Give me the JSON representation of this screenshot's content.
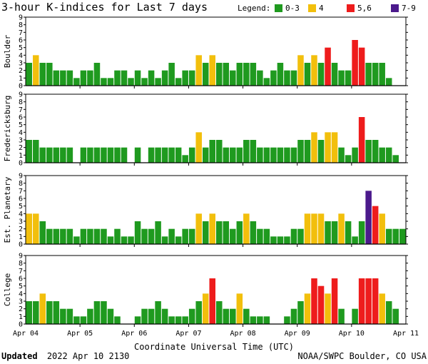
{
  "title": "3-hour K-indices for Last 7 days",
  "legend": {
    "label": "Legend:",
    "items": [
      {
        "label": "0-3",
        "color": "#1f9a1f"
      },
      {
        "label": "4",
        "color": "#f2bf0c"
      },
      {
        "label": "5,6",
        "color": "#ee1c1c"
      },
      {
        "label": "7-9",
        "color": "#4b1a8c"
      }
    ]
  },
  "chart_data": {
    "type": "bar",
    "x_ticks": [
      "Apr 04",
      "Apr 05",
      "Apr 06",
      "Apr 07",
      "Apr 08",
      "Apr 09",
      "Apr 10",
      "Apr 11"
    ],
    "xlabel": "Coordinate Universal Time (UTC)",
    "ylim": [
      0,
      9
    ],
    "y_ticks": [
      0,
      1,
      2,
      3,
      4,
      5,
      6,
      7,
      8,
      9
    ],
    "series": [
      {
        "name": "Boulder",
        "values": [
          3,
          4,
          3,
          3,
          2,
          2,
          2,
          1,
          2,
          2,
          3,
          1,
          1,
          2,
          2,
          1,
          2,
          1,
          2,
          1,
          2,
          3,
          1,
          2,
          2,
          4,
          3,
          4,
          3,
          3,
          2,
          3,
          3,
          3,
          2,
          1,
          2,
          3,
          2,
          2,
          4,
          3,
          4,
          3,
          5,
          3,
          2,
          2,
          6,
          5,
          3,
          3,
          3,
          1,
          0
        ]
      },
      {
        "name": "Fredericksburg",
        "values": [
          3,
          3,
          2,
          2,
          2,
          2,
          2,
          0,
          2,
          2,
          2,
          2,
          2,
          2,
          2,
          0,
          2,
          0,
          2,
          2,
          2,
          2,
          2,
          1,
          2,
          4,
          2,
          3,
          3,
          2,
          2,
          2,
          3,
          3,
          2,
          2,
          2,
          2,
          2,
          2,
          3,
          3,
          4,
          3,
          4,
          4,
          2,
          1,
          2,
          6,
          3,
          3,
          2,
          2,
          1,
          0
        ]
      },
      {
        "name": "Est. Planetary",
        "values": [
          4,
          4,
          3,
          2,
          2,
          2,
          2,
          1,
          2,
          2,
          2,
          2,
          1,
          2,
          1,
          1,
          3,
          2,
          2,
          3,
          1,
          2,
          1,
          2,
          2,
          4,
          3,
          4,
          3,
          3,
          2,
          3,
          4,
          3,
          2,
          2,
          1,
          1,
          1,
          2,
          2,
          4,
          4,
          4,
          3,
          3,
          4,
          3,
          1,
          3,
          7,
          5,
          4,
          2,
          2,
          2
        ]
      },
      {
        "name": "College",
        "values": [
          3,
          3,
          4,
          3,
          3,
          2,
          2,
          1,
          1,
          2,
          3,
          3,
          2,
          1,
          0,
          0,
          1,
          2,
          2,
          3,
          2,
          1,
          1,
          1,
          2,
          3,
          4,
          6,
          3,
          2,
          2,
          4,
          2,
          1,
          1,
          1,
          0,
          0,
          1,
          2,
          3,
          4,
          6,
          5,
          4,
          6,
          2,
          0,
          2,
          6,
          6,
          6,
          4,
          3,
          2,
          0
        ]
      }
    ],
    "panel_labels": [
      "Boulder",
      "Fredericksburg",
      "Est. Planetary",
      "College"
    ]
  },
  "footer": {
    "updated_label": "Updated",
    "updated_value": "2022 Apr 10 2130",
    "source": "NOAA/SWPC Boulder, CO USA"
  }
}
